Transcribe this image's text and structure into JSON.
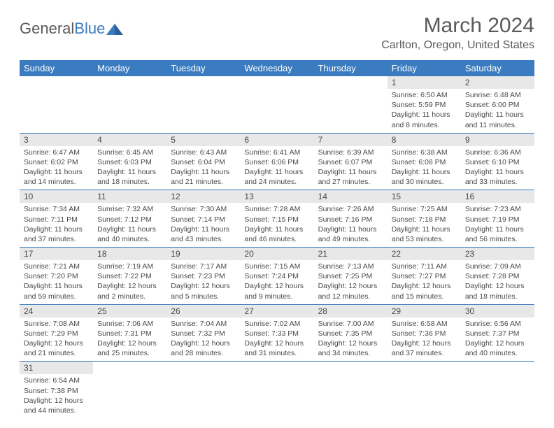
{
  "logo": {
    "text_general": "General",
    "text_blue": "Blue"
  },
  "title": "March 2024",
  "location": "Carlton, Oregon, United States",
  "colors": {
    "header_bg": "#3b7bbf",
    "header_fg": "#ffffff",
    "daynum_bg": "#e8e8e8",
    "text": "#4a4a4a",
    "border": "#3b7bbf"
  },
  "weekdays": [
    "Sunday",
    "Monday",
    "Tuesday",
    "Wednesday",
    "Thursday",
    "Friday",
    "Saturday"
  ],
  "weeks": [
    [
      null,
      null,
      null,
      null,
      null,
      {
        "n": "1",
        "sunrise": "6:50 AM",
        "sunset": "5:59 PM",
        "dl": "11 hours and 8 minutes."
      },
      {
        "n": "2",
        "sunrise": "6:48 AM",
        "sunset": "6:00 PM",
        "dl": "11 hours and 11 minutes."
      }
    ],
    [
      {
        "n": "3",
        "sunrise": "6:47 AM",
        "sunset": "6:02 PM",
        "dl": "11 hours and 14 minutes."
      },
      {
        "n": "4",
        "sunrise": "6:45 AM",
        "sunset": "6:03 PM",
        "dl": "11 hours and 18 minutes."
      },
      {
        "n": "5",
        "sunrise": "6:43 AM",
        "sunset": "6:04 PM",
        "dl": "11 hours and 21 minutes."
      },
      {
        "n": "6",
        "sunrise": "6:41 AM",
        "sunset": "6:06 PM",
        "dl": "11 hours and 24 minutes."
      },
      {
        "n": "7",
        "sunrise": "6:39 AM",
        "sunset": "6:07 PM",
        "dl": "11 hours and 27 minutes."
      },
      {
        "n": "8",
        "sunrise": "6:38 AM",
        "sunset": "6:08 PM",
        "dl": "11 hours and 30 minutes."
      },
      {
        "n": "9",
        "sunrise": "6:36 AM",
        "sunset": "6:10 PM",
        "dl": "11 hours and 33 minutes."
      }
    ],
    [
      {
        "n": "10",
        "sunrise": "7:34 AM",
        "sunset": "7:11 PM",
        "dl": "11 hours and 37 minutes."
      },
      {
        "n": "11",
        "sunrise": "7:32 AM",
        "sunset": "7:12 PM",
        "dl": "11 hours and 40 minutes."
      },
      {
        "n": "12",
        "sunrise": "7:30 AM",
        "sunset": "7:14 PM",
        "dl": "11 hours and 43 minutes."
      },
      {
        "n": "13",
        "sunrise": "7:28 AM",
        "sunset": "7:15 PM",
        "dl": "11 hours and 46 minutes."
      },
      {
        "n": "14",
        "sunrise": "7:26 AM",
        "sunset": "7:16 PM",
        "dl": "11 hours and 49 minutes."
      },
      {
        "n": "15",
        "sunrise": "7:25 AM",
        "sunset": "7:18 PM",
        "dl": "11 hours and 53 minutes."
      },
      {
        "n": "16",
        "sunrise": "7:23 AM",
        "sunset": "7:19 PM",
        "dl": "11 hours and 56 minutes."
      }
    ],
    [
      {
        "n": "17",
        "sunrise": "7:21 AM",
        "sunset": "7:20 PM",
        "dl": "11 hours and 59 minutes."
      },
      {
        "n": "18",
        "sunrise": "7:19 AM",
        "sunset": "7:22 PM",
        "dl": "12 hours and 2 minutes."
      },
      {
        "n": "19",
        "sunrise": "7:17 AM",
        "sunset": "7:23 PM",
        "dl": "12 hours and 5 minutes."
      },
      {
        "n": "20",
        "sunrise": "7:15 AM",
        "sunset": "7:24 PM",
        "dl": "12 hours and 9 minutes."
      },
      {
        "n": "21",
        "sunrise": "7:13 AM",
        "sunset": "7:25 PM",
        "dl": "12 hours and 12 minutes."
      },
      {
        "n": "22",
        "sunrise": "7:11 AM",
        "sunset": "7:27 PM",
        "dl": "12 hours and 15 minutes."
      },
      {
        "n": "23",
        "sunrise": "7:09 AM",
        "sunset": "7:28 PM",
        "dl": "12 hours and 18 minutes."
      }
    ],
    [
      {
        "n": "24",
        "sunrise": "7:08 AM",
        "sunset": "7:29 PM",
        "dl": "12 hours and 21 minutes."
      },
      {
        "n": "25",
        "sunrise": "7:06 AM",
        "sunset": "7:31 PM",
        "dl": "12 hours and 25 minutes."
      },
      {
        "n": "26",
        "sunrise": "7:04 AM",
        "sunset": "7:32 PM",
        "dl": "12 hours and 28 minutes."
      },
      {
        "n": "27",
        "sunrise": "7:02 AM",
        "sunset": "7:33 PM",
        "dl": "12 hours and 31 minutes."
      },
      {
        "n": "28",
        "sunrise": "7:00 AM",
        "sunset": "7:35 PM",
        "dl": "12 hours and 34 minutes."
      },
      {
        "n": "29",
        "sunrise": "6:58 AM",
        "sunset": "7:36 PM",
        "dl": "12 hours and 37 minutes."
      },
      {
        "n": "30",
        "sunrise": "6:56 AM",
        "sunset": "7:37 PM",
        "dl": "12 hours and 40 minutes."
      }
    ],
    [
      {
        "n": "31",
        "sunrise": "6:54 AM",
        "sunset": "7:38 PM",
        "dl": "12 hours and 44 minutes."
      },
      null,
      null,
      null,
      null,
      null,
      null
    ]
  ]
}
